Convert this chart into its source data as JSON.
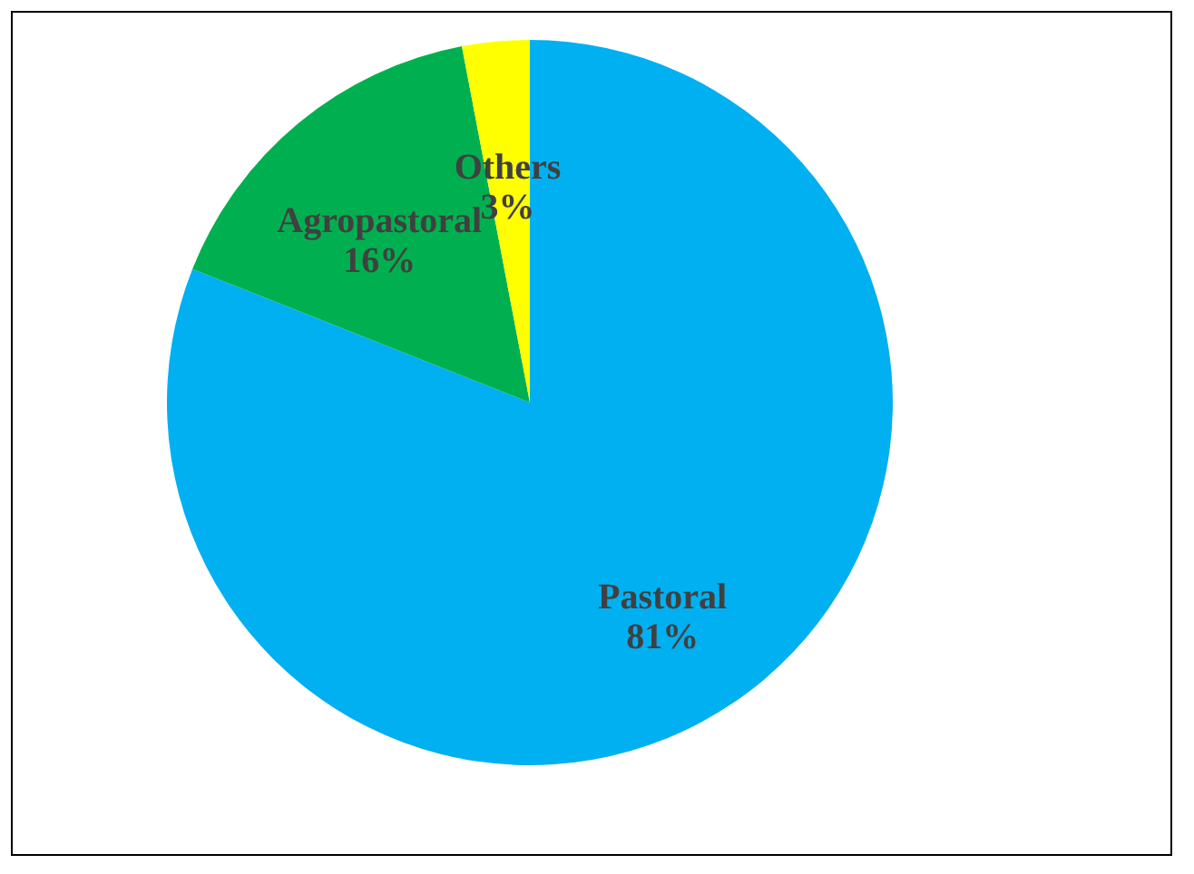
{
  "chart_data": {
    "type": "pie",
    "categories": [
      "Pastoral",
      "Agropastoral",
      "Others"
    ],
    "values": [
      81,
      16,
      3
    ],
    "colors": [
      "#00b0f0",
      "#00b050",
      "#ffff00"
    ],
    "value_labels": [
      "81%",
      "16%",
      "3%"
    ],
    "legend": false
  }
}
